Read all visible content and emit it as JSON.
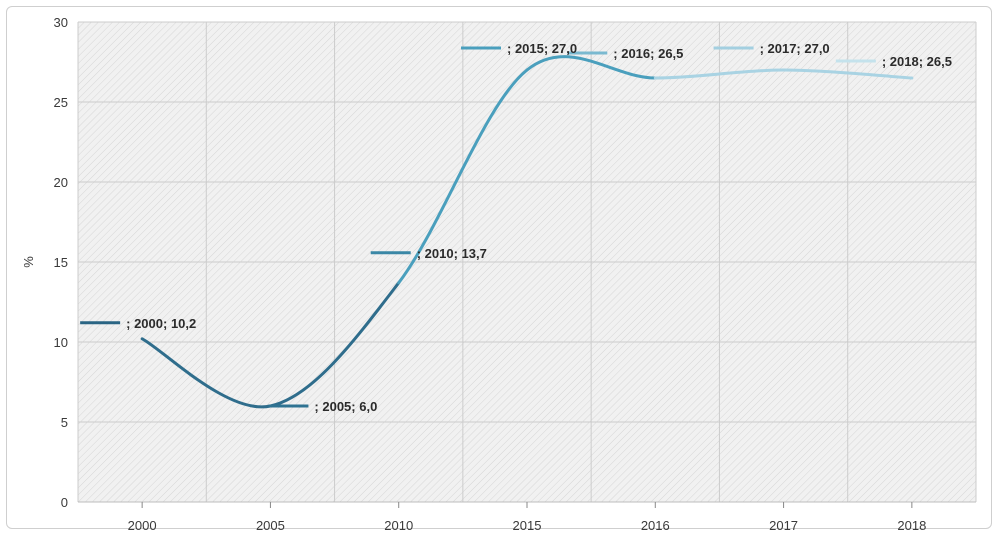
{
  "chart_data": {
    "type": "line",
    "categories": [
      "2000",
      "2005",
      "2010",
      "2015",
      "2016",
      "2017",
      "2018"
    ],
    "values": [
      10.2,
      6.0,
      13.7,
      27.0,
      26.5,
      27.0,
      26.5
    ],
    "data_labels": [
      "; 2000; 10,2",
      "; 2005; 6,0",
      "; 2010; 13,7",
      "; 2015; 27,0",
      "; 2016; 26,5",
      "; 2017; 27,0",
      "; 2018; 26,5"
    ],
    "ylabel": "%",
    "ylim": [
      0,
      30
    ],
    "yticks": [
      0,
      5,
      10,
      15,
      20,
      25,
      30
    ],
    "grid": true,
    "colors": {
      "line_dark": "#2f6d8c",
      "line_mid": "#4a9fbd",
      "line_light": "#a9d3e3",
      "marker_2000": "#2a6584",
      "marker_2005": "#2f7392",
      "marker_2010": "#3a87a6",
      "marker_2015": "#4a9fbd",
      "marker_2016": "#7ab9d0",
      "marker_2017": "#a3cfe0",
      "marker_2018": "#c4e2ec",
      "plot_bg": "#f1f1f1",
      "hatch": "#d6d6d6",
      "grid": "#cccccc"
    }
  }
}
